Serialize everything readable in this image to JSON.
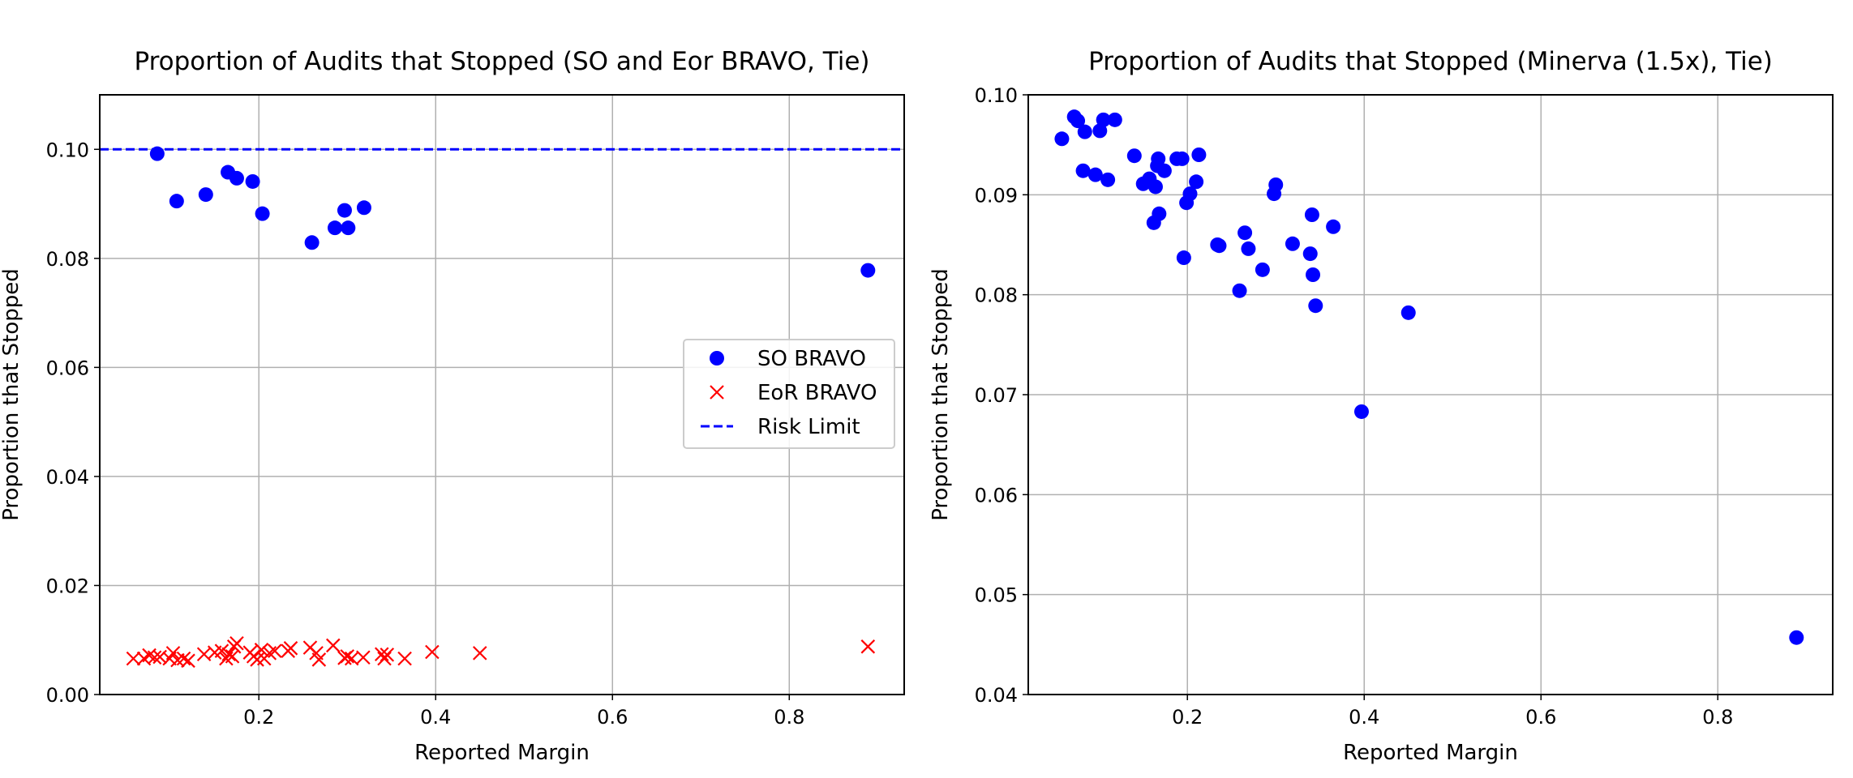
{
  "chart_data": [
    {
      "type": "scatter",
      "title": "Proportion of Audits that Stopped (SO and Eor BRAVO, Tie)",
      "xlabel": "Reported Margin",
      "ylabel": "Proportion that Stopped",
      "xlim": [
        0.02,
        0.93
      ],
      "ylim": [
        0.0,
        0.11
      ],
      "xticks": [
        0.2,
        0.4,
        0.6,
        0.8
      ],
      "xtick_labels": [
        "0.2",
        "0.4",
        "0.6",
        "0.8"
      ],
      "yticks": [
        0.0,
        0.02,
        0.04,
        0.06,
        0.08,
        0.1
      ],
      "ytick_labels": [
        "0.00",
        "0.02",
        "0.04",
        "0.06",
        "0.08",
        "0.10"
      ],
      "grid": true,
      "legend_position": "center-right",
      "series": [
        {
          "name": "SO BRAVO",
          "marker": "circle",
          "color": "#0000ff",
          "points": [
            [
              0.085,
              0.0992
            ],
            [
              0.107,
              0.0905
            ],
            [
              0.14,
              0.0917
            ],
            [
              0.165,
              0.0958
            ],
            [
              0.175,
              0.0947
            ],
            [
              0.193,
              0.0941
            ],
            [
              0.204,
              0.0882
            ],
            [
              0.26,
              0.0829
            ],
            [
              0.286,
              0.0856
            ],
            [
              0.297,
              0.0888
            ],
            [
              0.301,
              0.0856
            ],
            [
              0.319,
              0.0893
            ],
            [
              0.889,
              0.0778
            ]
          ]
        },
        {
          "name": "EoR BRAVO",
          "marker": "x",
          "color": "#ff0000",
          "points": [
            [
              0.058,
              0.0066
            ],
            [
              0.07,
              0.0066
            ],
            [
              0.076,
              0.0072
            ],
            [
              0.082,
              0.0068
            ],
            [
              0.088,
              0.0069
            ],
            [
              0.099,
              0.0066
            ],
            [
              0.103,
              0.0076
            ],
            [
              0.108,
              0.0063
            ],
            [
              0.115,
              0.0066
            ],
            [
              0.12,
              0.0062
            ],
            [
              0.138,
              0.0074
            ],
            [
              0.15,
              0.0077
            ],
            [
              0.158,
              0.008
            ],
            [
              0.163,
              0.0066
            ],
            [
              0.166,
              0.0074
            ],
            [
              0.17,
              0.007
            ],
            [
              0.172,
              0.0088
            ],
            [
              0.175,
              0.0094
            ],
            [
              0.19,
              0.0077
            ],
            [
              0.194,
              0.007
            ],
            [
              0.198,
              0.0064
            ],
            [
              0.203,
              0.0082
            ],
            [
              0.206,
              0.0066
            ],
            [
              0.212,
              0.0076
            ],
            [
              0.218,
              0.008
            ],
            [
              0.233,
              0.008
            ],
            [
              0.236,
              0.0085
            ],
            [
              0.258,
              0.0086
            ],
            [
              0.265,
              0.0076
            ],
            [
              0.268,
              0.0064
            ],
            [
              0.284,
              0.009
            ],
            [
              0.297,
              0.0067
            ],
            [
              0.3,
              0.007
            ],
            [
              0.305,
              0.0066
            ],
            [
              0.318,
              0.0068
            ],
            [
              0.339,
              0.0074
            ],
            [
              0.342,
              0.0066
            ],
            [
              0.345,
              0.0073
            ],
            [
              0.365,
              0.0066
            ],
            [
              0.396,
              0.0078
            ],
            [
              0.45,
              0.0076
            ],
            [
              0.889,
              0.0088
            ]
          ]
        },
        {
          "name": "Risk Limit",
          "type": "hline",
          "style": "dashed",
          "color": "#0000ff",
          "y": 0.1
        }
      ]
    },
    {
      "type": "scatter",
      "title": "Proportion of Audits that Stopped (Minerva (1.5x), Tie)",
      "xlabel": "Reported Margin",
      "ylabel": "Proportion that Stopped",
      "xlim": [
        0.02,
        0.93
      ],
      "ylim": [
        0.04,
        0.1
      ],
      "xticks": [
        0.2,
        0.4,
        0.6,
        0.8
      ],
      "xtick_labels": [
        "0.2",
        "0.4",
        "0.6",
        "0.8"
      ],
      "yticks": [
        0.04,
        0.05,
        0.06,
        0.07,
        0.08,
        0.09,
        0.1
      ],
      "ytick_labels": [
        "0.04",
        "0.05",
        "0.06",
        "0.07",
        "0.08",
        "0.09",
        "0.10"
      ],
      "grid": true,
      "series": [
        {
          "marker": "circle",
          "color": "#0000ff",
          "points": [
            [
              0.058,
              0.0956
            ],
            [
              0.072,
              0.0978
            ],
            [
              0.076,
              0.0974
            ],
            [
              0.082,
              0.0924
            ],
            [
              0.084,
              0.0963
            ],
            [
              0.096,
              0.092
            ],
            [
              0.101,
              0.0964
            ],
            [
              0.105,
              0.0975
            ],
            [
              0.11,
              0.0915
            ],
            [
              0.118,
              0.0975
            ],
            [
              0.14,
              0.0939
            ],
            [
              0.15,
              0.0911
            ],
            [
              0.157,
              0.0916
            ],
            [
              0.162,
              0.0872
            ],
            [
              0.164,
              0.0908
            ],
            [
              0.166,
              0.0929
            ],
            [
              0.167,
              0.0936
            ],
            [
              0.168,
              0.0881
            ],
            [
              0.174,
              0.0924
            ],
            [
              0.188,
              0.0936
            ],
            [
              0.194,
              0.0936
            ],
            [
              0.196,
              0.0837
            ],
            [
              0.199,
              0.0892
            ],
            [
              0.203,
              0.0901
            ],
            [
              0.21,
              0.0913
            ],
            [
              0.213,
              0.094
            ],
            [
              0.234,
              0.085
            ],
            [
              0.236,
              0.0849
            ],
            [
              0.259,
              0.0804
            ],
            [
              0.265,
              0.0862
            ],
            [
              0.269,
              0.0846
            ],
            [
              0.285,
              0.0825
            ],
            [
              0.298,
              0.0901
            ],
            [
              0.3,
              0.091
            ],
            [
              0.319,
              0.0851
            ],
            [
              0.339,
              0.0841
            ],
            [
              0.341,
              0.088
            ],
            [
              0.342,
              0.082
            ],
            [
              0.345,
              0.0789
            ],
            [
              0.365,
              0.0868
            ],
            [
              0.397,
              0.0683
            ],
            [
              0.45,
              0.0782
            ],
            [
              0.889,
              0.0457
            ]
          ]
        }
      ]
    }
  ]
}
